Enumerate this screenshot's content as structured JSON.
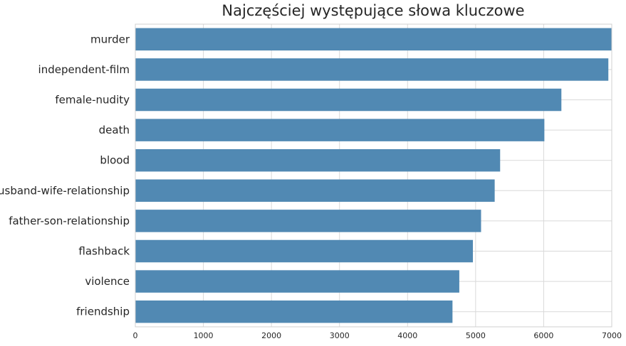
{
  "chart_data": {
    "type": "bar",
    "orientation": "horizontal",
    "title": "Najczęściej występujące słowa kluczowe",
    "xlabel": "",
    "ylabel": "",
    "categories": [
      "murder",
      "independent-film",
      "female-nudity",
      "death",
      "blood",
      "husband-wife-relationship",
      "father-son-relationship",
      "flashback",
      "violence",
      "friendship"
    ],
    "values": [
      7000,
      6950,
      6260,
      6010,
      5360,
      5280,
      5080,
      4960,
      4760,
      4660
    ],
    "xlim": [
      0,
      7000
    ],
    "xticks": [
      0,
      1000,
      2000,
      3000,
      4000,
      5000,
      6000,
      7000
    ],
    "xtick_labels": [
      "0",
      "1000",
      "2000",
      "3000",
      "4000",
      "5000",
      "6000",
      "7000"
    ],
    "grid": true,
    "bar_color": "#5189b3",
    "grid_color": "#d9d9d9",
    "background_color": "#ffffff"
  }
}
